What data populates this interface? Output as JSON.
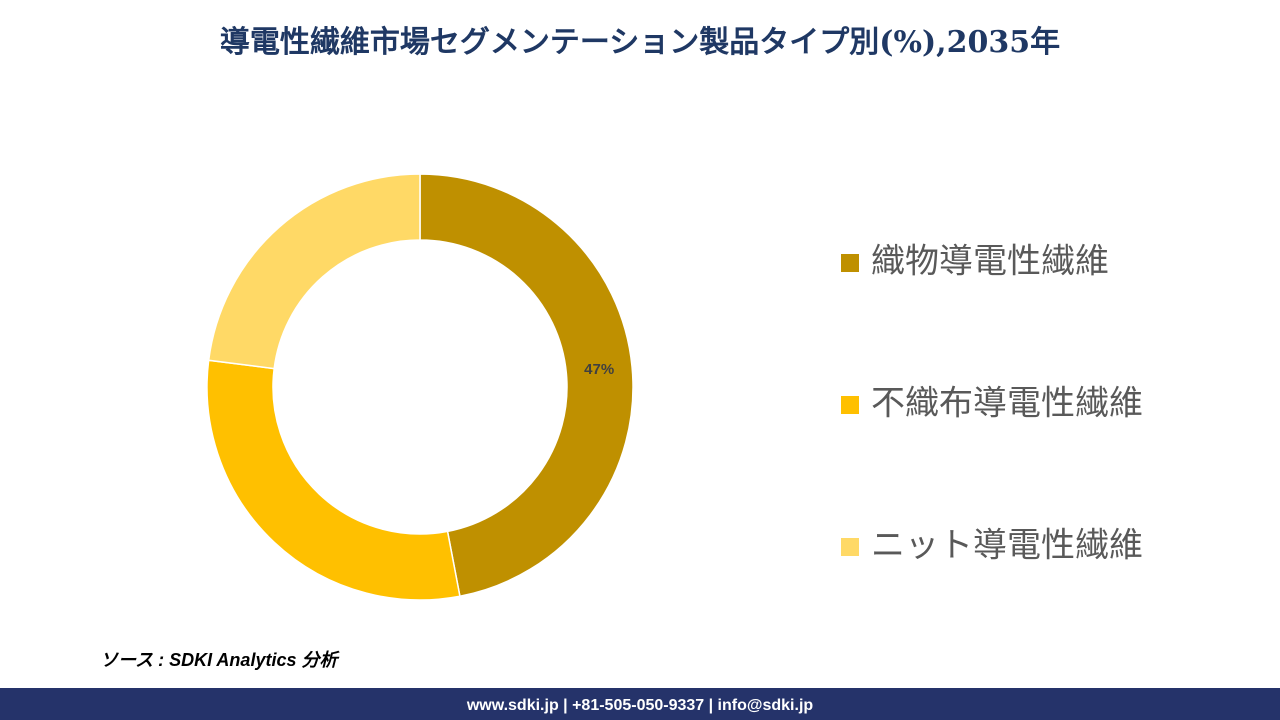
{
  "chart_data": {
    "type": "donut",
    "title": "導電性繊維市場セグメンテーション製品タイプ別(%),2035年",
    "categories": [
      "織物導電性繊維",
      "不織布導電性繊維",
      "ニット導電性繊維"
    ],
    "values": [
      47,
      30,
      23
    ],
    "value_labels": [
      "47%",
      null,
      null
    ],
    "colors": [
      "#bf9000",
      "#ffc000",
      "#ffd966"
    ],
    "legend": "right"
  },
  "source": "ソース : SDKI Analytics 分析",
  "footer": "www.sdki.jp | +81-505-050-9337 | info@sdki.jp"
}
